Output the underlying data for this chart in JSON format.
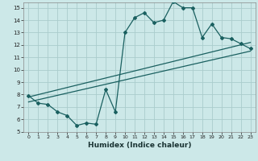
{
  "xlabel": "Humidex (Indice chaleur)",
  "bg_color": "#cce8e8",
  "grid_color": "#aacccc",
  "line_color": "#1a6060",
  "xlim": [
    -0.5,
    23.5
  ],
  "ylim": [
    5,
    15.4
  ],
  "xticks": [
    0,
    1,
    2,
    3,
    4,
    5,
    6,
    7,
    8,
    9,
    10,
    11,
    12,
    13,
    14,
    15,
    16,
    17,
    18,
    19,
    20,
    21,
    22,
    23
  ],
  "yticks": [
    5,
    6,
    7,
    8,
    9,
    10,
    11,
    12,
    13,
    14,
    15
  ],
  "curve1_x": [
    0,
    1,
    2,
    3,
    4,
    5,
    6,
    7,
    8,
    9,
    10,
    11,
    12,
    13,
    14,
    15,
    16,
    17,
    18,
    19,
    20,
    21,
    22,
    23
  ],
  "curve1_y": [
    7.9,
    7.3,
    7.2,
    6.6,
    6.3,
    5.5,
    5.7,
    5.6,
    8.4,
    6.6,
    13.0,
    14.2,
    14.6,
    13.8,
    14.0,
    15.5,
    15.0,
    15.0,
    12.6,
    13.7,
    12.6,
    12.5,
    12.1,
    11.7
  ],
  "line2_x": [
    0,
    23
  ],
  "line2_y": [
    7.8,
    12.2
  ],
  "line3_x": [
    0,
    23
  ],
  "line3_y": [
    7.4,
    11.5
  ],
  "tick_fontsize": 5.0,
  "xlabel_fontsize": 6.5
}
